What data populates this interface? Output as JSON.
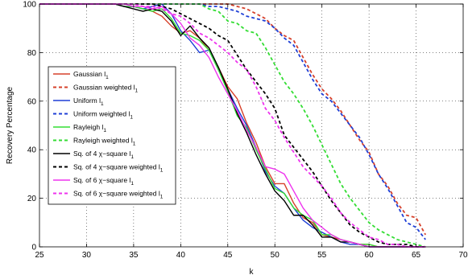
{
  "chart_data": {
    "type": "line",
    "xlabel": "k",
    "ylabel": "Recovery Percentage",
    "xlim": [
      25,
      70
    ],
    "ylim": [
      0,
      100
    ],
    "xticks": [
      25,
      30,
      35,
      40,
      45,
      50,
      55,
      60,
      65,
      70
    ],
    "yticks": [
      0,
      20,
      40,
      60,
      80,
      100
    ],
    "grid": true,
    "legend_position": "left",
    "series": [
      {
        "name": "Gaussian l",
        "name_subscript": "1",
        "color": "#d6402a",
        "dash": "solid",
        "x": [
          25,
          26,
          27,
          28,
          29,
          30,
          31,
          32,
          33,
          34,
          35,
          36,
          37,
          38,
          39,
          40,
          41,
          42,
          43,
          44,
          45,
          46,
          47,
          48,
          49,
          50,
          51,
          52,
          53,
          54,
          55,
          56,
          57,
          58,
          59,
          60,
          61,
          62,
          63,
          64,
          65,
          66
        ],
        "y": [
          100,
          100,
          100,
          100,
          100,
          100,
          100,
          100,
          100,
          99,
          99,
          98,
          97,
          95,
          91,
          88,
          89,
          86,
          81,
          74,
          66,
          61,
          51,
          43,
          33,
          26,
          26,
          18,
          12,
          10,
          5,
          4,
          3,
          2,
          1,
          1,
          0,
          0,
          0,
          0,
          0,
          0
        ]
      },
      {
        "name": "Gaussian weighted l",
        "name_subscript": "1",
        "color": "#d6402a",
        "dash": "dashed",
        "x": [
          25,
          26,
          27,
          28,
          29,
          30,
          31,
          32,
          33,
          34,
          35,
          36,
          37,
          38,
          39,
          40,
          41,
          42,
          43,
          44,
          45,
          46,
          47,
          48,
          49,
          50,
          51,
          52,
          53,
          54,
          55,
          56,
          57,
          58,
          59,
          60,
          61,
          62,
          63,
          64,
          65,
          66
        ],
        "y": [
          100,
          100,
          100,
          100,
          100,
          100,
          100,
          100,
          100,
          100,
          100,
          100,
          100,
          100,
          100,
          100,
          100,
          100,
          100,
          100,
          100,
          99,
          98,
          96,
          94,
          90,
          87,
          85,
          78,
          71,
          65,
          61,
          56,
          50,
          44,
          39,
          30,
          25,
          18,
          13,
          12,
          5
        ]
      },
      {
        "name": "Uniform l",
        "name_subscript": "1",
        "color": "#1f3fd6",
        "dash": "solid",
        "x": [
          25,
          26,
          27,
          28,
          29,
          30,
          31,
          32,
          33,
          34,
          35,
          36,
          37,
          38,
          39,
          40,
          41,
          42,
          43,
          44,
          45,
          46,
          47,
          48,
          49,
          50,
          51,
          52,
          53,
          54,
          55,
          56,
          57,
          58,
          59,
          60,
          61,
          62,
          63,
          64,
          65,
          66
        ],
        "y": [
          100,
          100,
          100,
          100,
          100,
          100,
          100,
          100,
          100,
          99,
          99,
          98,
          99,
          100,
          96,
          89,
          85,
          80,
          81,
          73,
          65,
          57,
          50,
          41,
          31,
          25,
          22,
          16,
          11,
          8,
          6,
          4,
          2,
          1,
          1,
          0,
          0,
          0,
          0,
          0,
          0,
          0
        ]
      },
      {
        "name": "Uniform weighted l",
        "name_subscript": "1",
        "color": "#1f3fd6",
        "dash": "dashed",
        "x": [
          25,
          26,
          27,
          28,
          29,
          30,
          31,
          32,
          33,
          34,
          35,
          36,
          37,
          38,
          39,
          40,
          41,
          42,
          43,
          44,
          45,
          46,
          47,
          48,
          49,
          50,
          51,
          52,
          53,
          54,
          55,
          56,
          57,
          58,
          59,
          60,
          61,
          62,
          63,
          64,
          65,
          66
        ],
        "y": [
          100,
          100,
          100,
          100,
          100,
          100,
          100,
          100,
          100,
          100,
          100,
          100,
          100,
          100,
          100,
          100,
          100,
          100,
          99,
          99,
          98,
          97,
          95,
          94,
          93,
          90,
          86,
          83,
          76,
          69,
          63,
          60,
          55,
          50,
          45,
          38,
          30,
          24,
          17,
          10,
          8,
          3
        ]
      },
      {
        "name": "Rayleigh l",
        "name_subscript": "1",
        "color": "#33dd33",
        "dash": "solid",
        "x": [
          25,
          26,
          27,
          28,
          29,
          30,
          31,
          32,
          33,
          34,
          35,
          36,
          37,
          38,
          39,
          40,
          41,
          42,
          43,
          44,
          45,
          46,
          47,
          48,
          49,
          50,
          51,
          52,
          53,
          54,
          55,
          56,
          57,
          58,
          59,
          60,
          61,
          62,
          63,
          64,
          65,
          66
        ],
        "y": [
          100,
          100,
          100,
          100,
          100,
          100,
          100,
          100,
          100,
          99,
          99,
          98,
          97,
          98,
          94,
          88,
          87,
          85,
          81,
          73,
          64,
          54,
          49,
          40,
          32,
          24,
          22,
          16,
          13,
          11,
          5,
          5,
          3,
          2,
          1,
          1,
          0,
          0,
          0,
          0,
          0,
          0
        ]
      },
      {
        "name": "Rayleigh weighted l",
        "name_subscript": "1",
        "color": "#33dd33",
        "dash": "dashed",
        "x": [
          25,
          26,
          27,
          28,
          29,
          30,
          31,
          32,
          33,
          34,
          35,
          36,
          37,
          38,
          39,
          40,
          41,
          42,
          43,
          44,
          45,
          46,
          47,
          48,
          49,
          50,
          51,
          52,
          53,
          54,
          55,
          56,
          57,
          58,
          59,
          60,
          61,
          62,
          63,
          64,
          65,
          66
        ],
        "y": [
          100,
          100,
          100,
          100,
          100,
          100,
          100,
          100,
          100,
          100,
          100,
          100,
          100,
          100,
          100,
          100,
          100,
          100,
          98,
          97,
          93,
          92,
          89,
          88,
          82,
          75,
          68,
          63,
          57,
          50,
          42,
          34,
          26,
          20,
          15,
          10,
          7,
          5,
          3,
          2,
          1,
          0
        ]
      },
      {
        "name": "Sq. of 4 χ−square  l",
        "name_subscript": "1",
        "color": "#000000",
        "dash": "solid",
        "x": [
          25,
          26,
          27,
          28,
          29,
          30,
          31,
          32,
          33,
          34,
          35,
          36,
          37,
          38,
          39,
          40,
          41,
          42,
          43,
          44,
          45,
          46,
          47,
          48,
          49,
          50,
          51,
          52,
          53,
          54,
          55,
          56,
          57,
          58,
          59,
          60,
          61,
          62,
          63,
          64,
          65,
          66
        ],
        "y": [
          100,
          100,
          100,
          100,
          100,
          100,
          100,
          100,
          100,
          99,
          98,
          97,
          98,
          97,
          93,
          87,
          91,
          86,
          82,
          74,
          65,
          55,
          47,
          38,
          30,
          23,
          19,
          13,
          13,
          9,
          4,
          4,
          2,
          2,
          1,
          0,
          0,
          0,
          0,
          0,
          0,
          0
        ]
      },
      {
        "name": "Sq. of 4 χ−square weighted l",
        "name_subscript": "1",
        "color": "#000000",
        "dash": "dashed",
        "x": [
          25,
          26,
          27,
          28,
          29,
          30,
          31,
          32,
          33,
          34,
          35,
          36,
          37,
          38,
          39,
          40,
          41,
          42,
          43,
          44,
          45,
          46,
          47,
          48,
          49,
          50,
          51,
          52,
          53,
          54,
          55,
          56,
          57,
          58,
          59,
          60,
          61,
          62,
          63,
          64,
          65,
          66
        ],
        "y": [
          100,
          100,
          100,
          100,
          100,
          100,
          100,
          100,
          100,
          100,
          100,
          100,
          100,
          99,
          98,
          96,
          94,
          92,
          90,
          87,
          85,
          79,
          73,
          68,
          63,
          57,
          46,
          41,
          36,
          31,
          25,
          19,
          14,
          9,
          6,
          4,
          2,
          1,
          1,
          1,
          0,
          0
        ]
      },
      {
        "name": "Sq. of 6 χ−square  l",
        "name_subscript": "1",
        "color": "#ee33ee",
        "dash": "solid",
        "x": [
          25,
          26,
          27,
          28,
          29,
          30,
          31,
          32,
          33,
          34,
          35,
          36,
          37,
          38,
          39,
          40,
          41,
          42,
          43,
          44,
          45,
          46,
          47,
          48,
          49,
          50,
          51,
          52,
          53,
          54,
          55,
          56,
          57,
          58,
          59,
          60,
          61,
          62,
          63,
          64,
          65,
          66
        ],
        "y": [
          100,
          100,
          100,
          100,
          100,
          100,
          100,
          100,
          100,
          100,
          99,
          99,
          98,
          99,
          96,
          92,
          86,
          83,
          78,
          70,
          63,
          56,
          48,
          41,
          33,
          32,
          30,
          23,
          16,
          11,
          8,
          5,
          3,
          2,
          1,
          0,
          0,
          0,
          0,
          0,
          0,
          0
        ]
      },
      {
        "name": "Sq. of 6 χ−square weighted l",
        "name_subscript": "1",
        "color": "#ee33ee",
        "dash": "dashed",
        "x": [
          25,
          26,
          27,
          28,
          29,
          30,
          31,
          32,
          33,
          34,
          35,
          36,
          37,
          38,
          39,
          40,
          41,
          42,
          43,
          44,
          45,
          46,
          47,
          48,
          49,
          50,
          51,
          52,
          53,
          54,
          55,
          56,
          57,
          58,
          59,
          60,
          61,
          62,
          63,
          64,
          65,
          66
        ],
        "y": [
          100,
          100,
          100,
          100,
          100,
          100,
          100,
          100,
          100,
          100,
          100,
          99,
          99,
          98,
          96,
          95,
          92,
          88,
          86,
          83,
          80,
          76,
          73,
          66,
          57,
          52,
          45,
          39,
          33,
          29,
          25,
          20,
          14,
          10,
          7,
          4,
          3,
          1,
          1,
          0,
          0,
          0
        ]
      }
    ]
  }
}
